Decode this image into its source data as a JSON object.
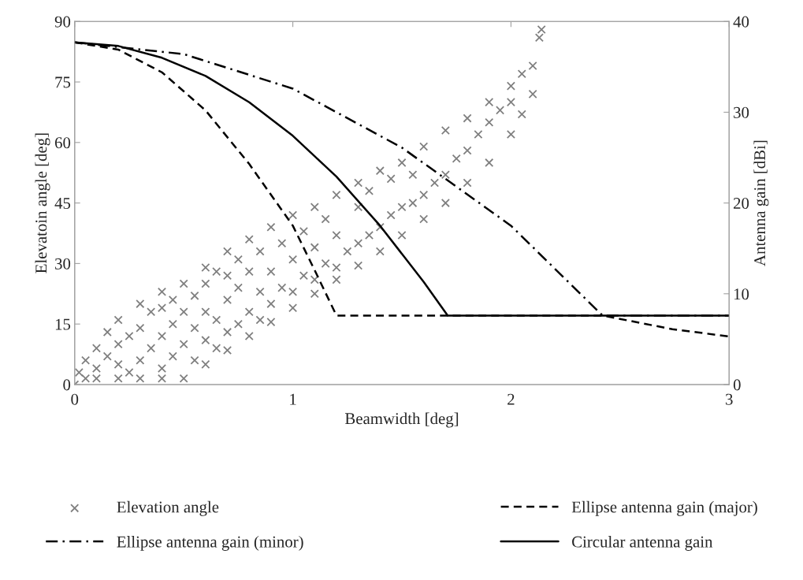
{
  "chart_data": {
    "type": "line",
    "xlabel": "Beamwidth [deg]",
    "ylabel": "Elevatoin angle [deg]",
    "y2label": "Antenna gain [dBi]",
    "xlim": [
      0,
      3
    ],
    "xticks": [
      0,
      1,
      2,
      3
    ],
    "ylim": [
      0,
      90
    ],
    "yticks": [
      0,
      15,
      30,
      45,
      60,
      75,
      90
    ],
    "y2lim": [
      0,
      40
    ],
    "y2ticks": [
      0,
      10,
      20,
      30,
      40
    ],
    "grid": false,
    "legend": "bottom",
    "series": [
      {
        "name": "Elevation angle",
        "type": "scatter",
        "marker": "cross",
        "color": "#808080",
        "x": [
          0,
          0.05,
          0.1,
          0.2,
          0.3,
          0.4,
          0.5,
          0.6,
          0.7,
          0.8,
          0.9,
          1.0,
          1.1,
          1.2,
          1.3,
          1.4,
          1.5,
          1.6,
          1.7,
          1.8,
          1.9,
          2.0,
          2.05,
          2.1,
          0.02,
          0.05,
          0.1,
          0.15,
          0.2,
          0.3,
          0.4,
          0.5,
          0.6,
          0.7,
          0.8,
          0.9,
          1.0,
          1.1,
          1.2,
          1.3,
          1.4,
          1.5,
          1.6,
          1.7,
          1.8,
          1.9,
          2.0,
          2.05,
          2.1,
          2.13,
          2.14,
          0.1,
          0.15,
          0.2,
          0.2,
          0.25,
          0.25,
          0.3,
          0.3,
          0.35,
          0.35,
          0.4,
          0.4,
          0.4,
          0.45,
          0.45,
          0.45,
          0.5,
          0.5,
          0.55,
          0.55,
          0.55,
          0.6,
          0.6,
          0.6,
          0.65,
          0.65,
          0.65,
          0.7,
          0.7,
          0.7,
          0.75,
          0.75,
          0.75,
          0.8,
          0.8,
          0.85,
          0.85,
          0.85,
          0.9,
          0.9,
          0.95,
          0.95,
          1.0,
          1.0,
          1.05,
          1.05,
          1.1,
          1.1,
          1.15,
          1.15,
          1.2,
          1.2,
          1.25,
          1.3,
          1.3,
          1.35,
          1.35,
          1.4,
          1.45,
          1.45,
          1.5,
          1.55,
          1.55,
          1.6,
          1.65,
          1.7,
          1.75,
          1.8,
          1.85,
          1.9,
          1.95,
          2.0
        ],
        "values": [
          0,
          1.5,
          1.5,
          1.5,
          1.5,
          1.5,
          1.5,
          5,
          8.5,
          12,
          15.5,
          19,
          22.5,
          26,
          29.5,
          33,
          37,
          41,
          45,
          50,
          55,
          62,
          67,
          72,
          3,
          6,
          9,
          13,
          16,
          20,
          23,
          25,
          29,
          33,
          36,
          39,
          42,
          44,
          47,
          50,
          53,
          55,
          59,
          63,
          66,
          70,
          74,
          77,
          79,
          86,
          88,
          4,
          7,
          5,
          10,
          3,
          12,
          6,
          14,
          9,
          18,
          4,
          12,
          19,
          7,
          15,
          21,
          10,
          18,
          6,
          14,
          22,
          11,
          18,
          25,
          9,
          16,
          28,
          13,
          21,
          27,
          15,
          24,
          31,
          18,
          28,
          16,
          23,
          33,
          20,
          28,
          24,
          35,
          23,
          31,
          27,
          38,
          26,
          34,
          30,
          41,
          29,
          37,
          33,
          35,
          44,
          37,
          48,
          39,
          42,
          51,
          44,
          45,
          52,
          47,
          50,
          52,
          56,
          58,
          62,
          65,
          68,
          70
        ]
      },
      {
        "name": "Ellipse antenna gain (major)",
        "axis": "y2",
        "line_style": "dashed",
        "color": "#000000",
        "x": [
          0,
          0.2,
          0.4,
          0.6,
          0.8,
          1.0,
          1.1,
          1.2,
          2.42,
          2.74,
          3.0
        ],
        "values": [
          37.7,
          36.9,
          34.4,
          30.2,
          24.3,
          17.5,
          12.6,
          7.6,
          7.6,
          6.1,
          5.3
        ]
      },
      {
        "name": "Ellipse antenna gain (minor)",
        "axis": "y2",
        "line_style": "dashdot",
        "color": "#000000",
        "x": [
          0,
          0.5,
          1.0,
          1.5,
          2.0,
          2.42,
          3.0
        ],
        "values": [
          37.7,
          36.4,
          32.6,
          26.1,
          17.5,
          7.6,
          7.6
        ]
      },
      {
        "name": "Circular antenna gain",
        "axis": "y2",
        "line_style": "solid",
        "color": "#000000",
        "x": [
          0,
          0.2,
          0.4,
          0.6,
          0.8,
          1.0,
          1.2,
          1.4,
          1.6,
          1.71,
          3.0
        ],
        "values": [
          37.7,
          37.3,
          36.0,
          34.0,
          31.1,
          27.4,
          22.9,
          17.5,
          11.3,
          7.6,
          7.6
        ]
      }
    ]
  }
}
